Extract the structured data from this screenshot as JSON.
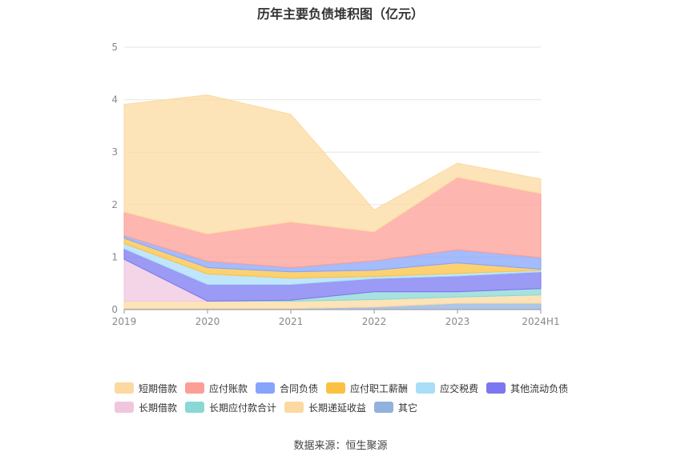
{
  "chart_data": {
    "type": "area",
    "title": "历年主要负债堆积图（亿元）",
    "x": [
      "2019",
      "2020",
      "2021",
      "2022",
      "2023",
      "2024H1"
    ],
    "yticks": [
      "0",
      "1",
      "2",
      "3",
      "4",
      "5"
    ],
    "ylim": [
      0,
      5
    ],
    "grid": true,
    "legend_position": "bottom",
    "stack_order_bottom_to_top": [
      "其它",
      "长期递延收益",
      "长期应付款合计",
      "长期借款",
      "其他流动负债",
      "应交税费",
      "应付职工薪酬",
      "合同负债",
      "应付账款",
      "短期借款"
    ],
    "series": [
      {
        "name": "短期借款",
        "color": "#fcd9a0",
        "values": [
          2.05,
          2.65,
          2.05,
          0.42,
          0.27,
          0.28
        ]
      },
      {
        "name": "应付账款",
        "color": "#fc9e96",
        "values": [
          0.45,
          0.52,
          0.87,
          0.55,
          1.38,
          1.22
        ]
      },
      {
        "name": "合同负债",
        "color": "#86a4fb",
        "values": [
          0.05,
          0.12,
          0.08,
          0.18,
          0.25,
          0.22
        ]
      },
      {
        "name": "应付职工薪酬",
        "color": "#fbc143",
        "values": [
          0.1,
          0.12,
          0.12,
          0.12,
          0.2,
          0.02
        ]
      },
      {
        "name": "应交税费",
        "color": "#a9def8",
        "values": [
          0.1,
          0.2,
          0.12,
          0.04,
          0.05,
          0.03
        ]
      },
      {
        "name": "其他流动负债",
        "color": "#7a78f0",
        "values": [
          0.2,
          0.32,
          0.3,
          0.25,
          0.3,
          0.32
        ]
      },
      {
        "name": "长期借款",
        "color": "#f0c6df",
        "values": [
          0.8,
          0.0,
          0.0,
          0.0,
          0.0,
          0.0
        ]
      },
      {
        "name": "长期应付款合计",
        "color": "#89d8d6",
        "values": [
          0.0,
          0.0,
          0.02,
          0.15,
          0.1,
          0.12
        ]
      },
      {
        "name": "长期递延收益",
        "color": "#fcd9a0",
        "values": [
          0.14,
          0.14,
          0.14,
          0.14,
          0.12,
          0.16
        ]
      },
      {
        "name": "其它",
        "color": "#92b2de",
        "values": [
          0.02,
          0.02,
          0.02,
          0.05,
          0.12,
          0.12
        ]
      }
    ]
  },
  "legend": {
    "row1": [
      {
        "label": "短期借款",
        "color": "#fcd9a0"
      },
      {
        "label": "应付账款",
        "color": "#fc9e96"
      },
      {
        "label": "合同负债",
        "color": "#86a4fb"
      },
      {
        "label": "应付职工薪酬",
        "color": "#fbc143"
      },
      {
        "label": "应交税费",
        "color": "#a9def8"
      },
      {
        "label": "其他流动负债",
        "color": "#7a78f0"
      }
    ],
    "row2": [
      {
        "label": "长期借款",
        "color": "#f0c6df"
      },
      {
        "label": "长期应付款合计",
        "color": "#89d8d6"
      },
      {
        "label": "长期递延收益",
        "color": "#fcd9a0"
      },
      {
        "label": "其它",
        "color": "#92b2de"
      }
    ]
  },
  "source": "数据来源：恒生聚源"
}
